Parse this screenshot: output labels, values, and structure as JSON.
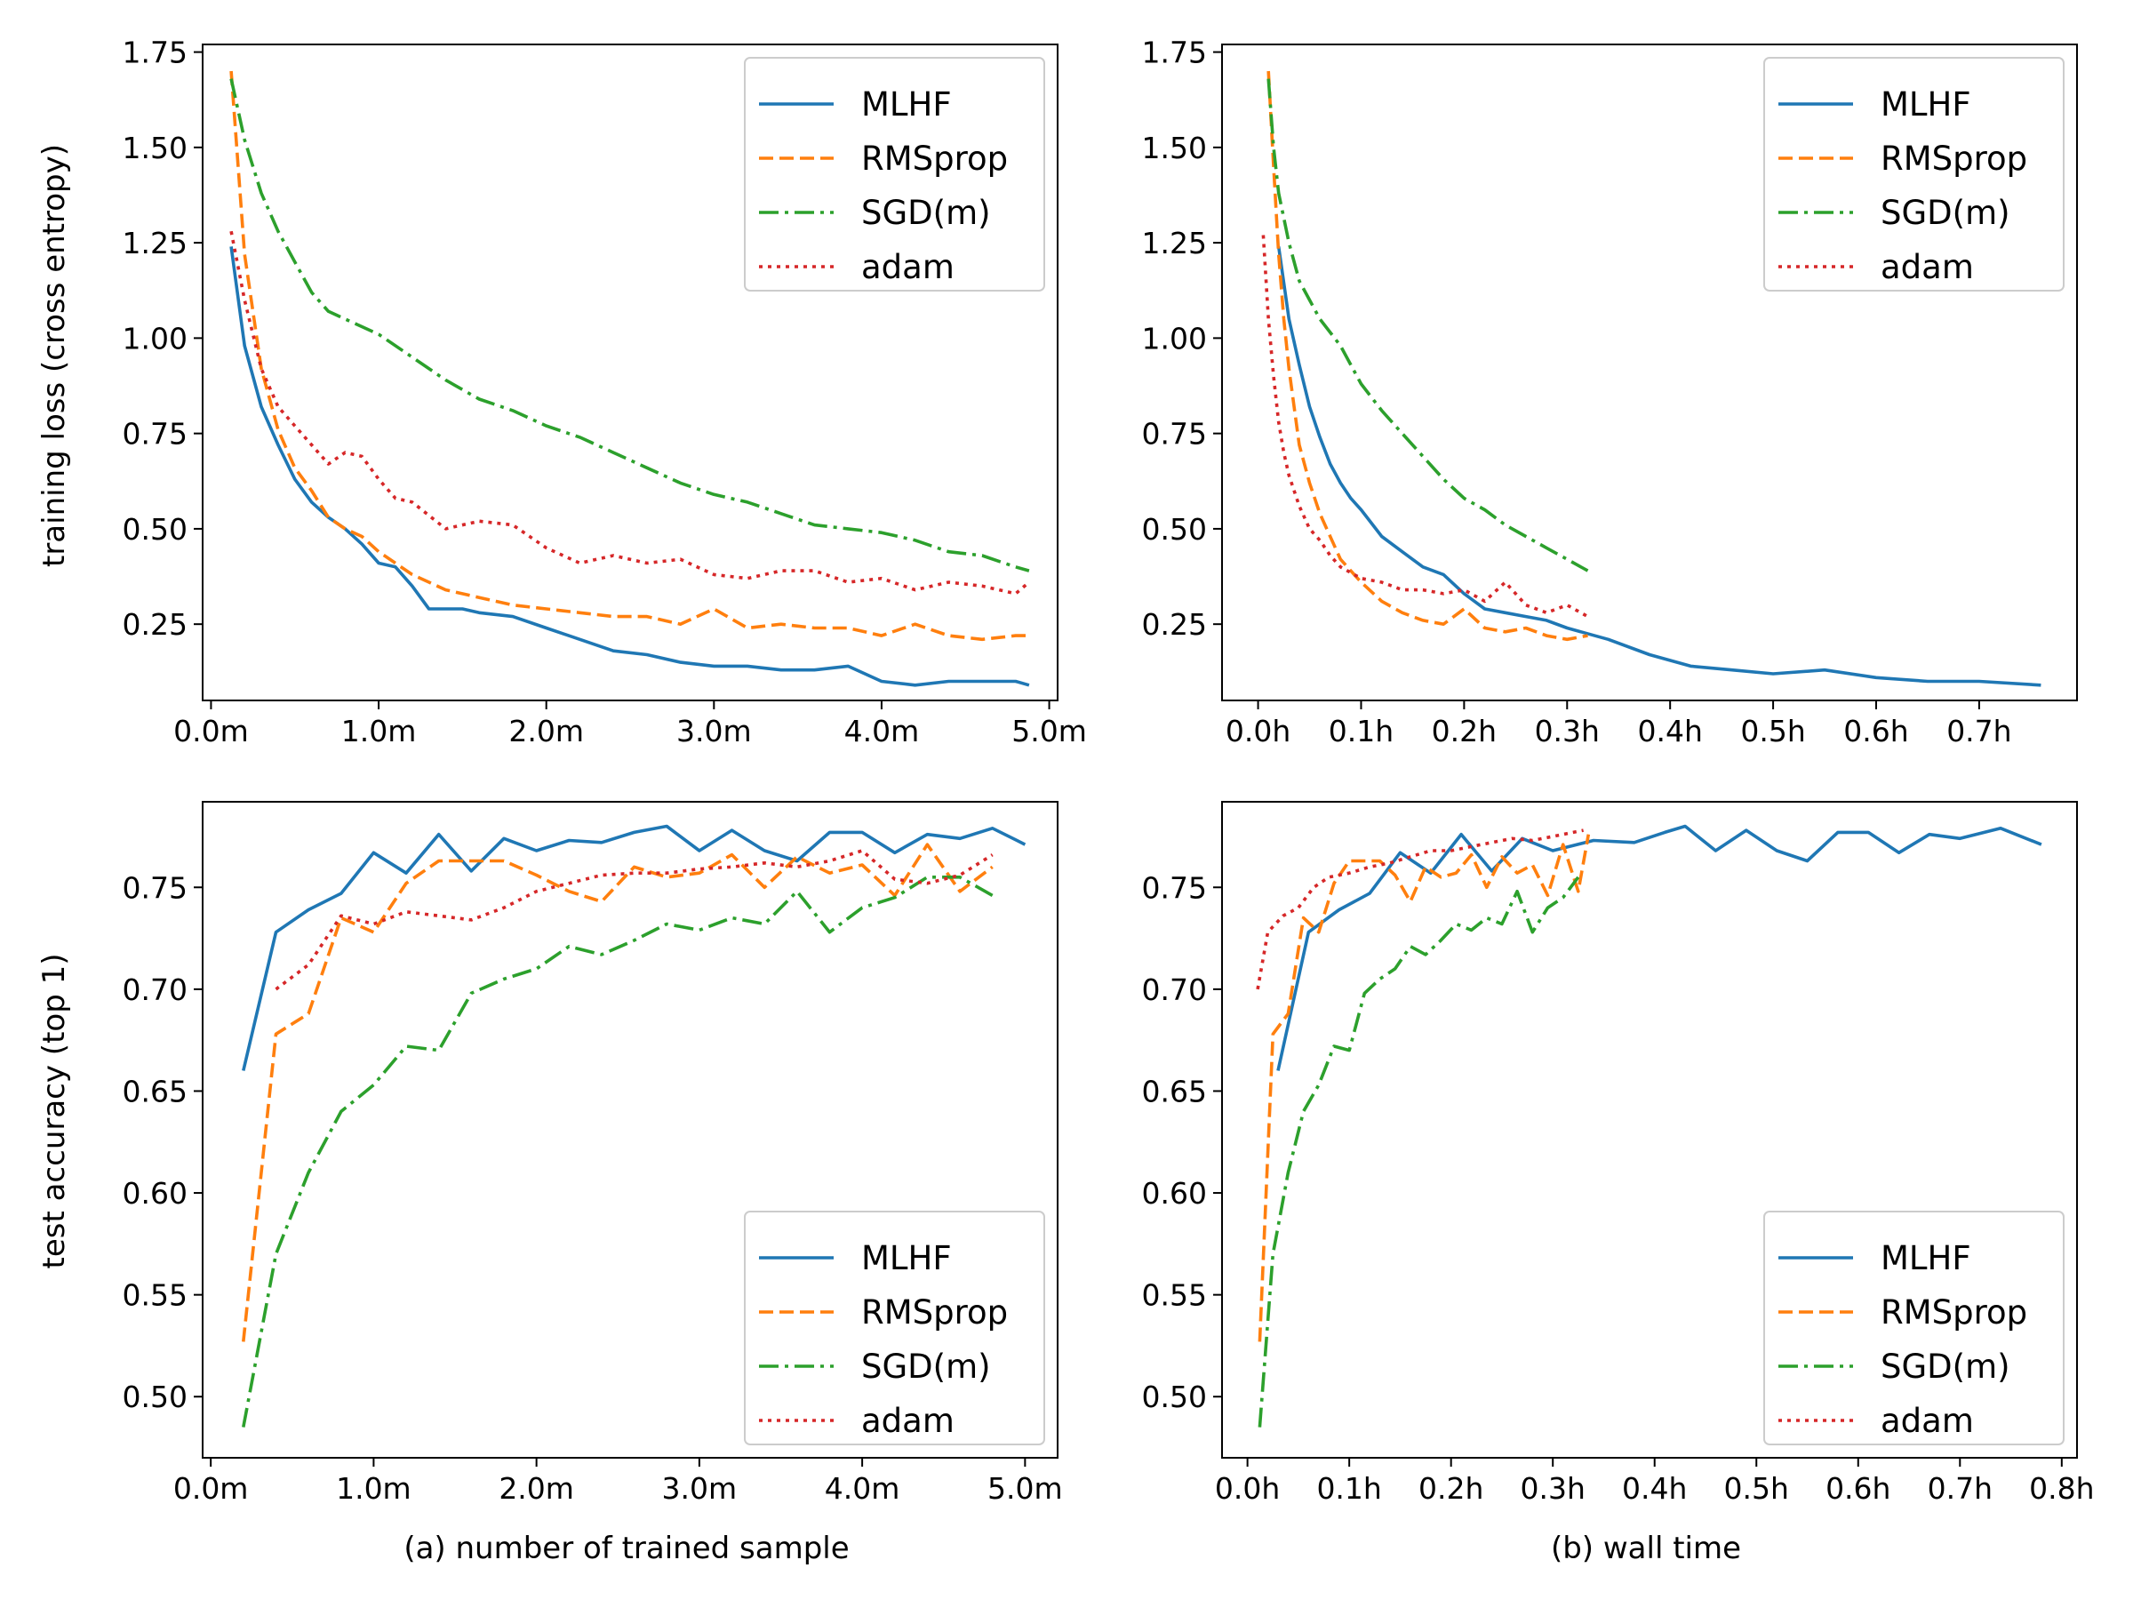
{
  "figure": {
    "captions": {
      "a": "(a) number of trained sample",
      "b": "(b) wall time"
    },
    "ylabels": {
      "loss": "training loss (cross entropy)",
      "acc": "test accuracy (top 1)"
    },
    "legend": [
      "MLHF",
      "RMSprop",
      "SGD(m)",
      "adam"
    ],
    "colors": {
      "MLHF": "#1f77b4",
      "RMSprop": "#ff7f0e",
      "SGD(m)": "#2ca02c",
      "adam": "#d62728"
    }
  },
  "chart_data": [
    {
      "id": "loss-samples",
      "type": "line",
      "title": "",
      "xlabel": "",
      "ylabel": "training loss (cross entropy)",
      "xlim": [
        -0.05,
        5.05
      ],
      "ylim": [
        0.05,
        1.77
      ],
      "xticks": [
        0,
        1,
        2,
        3,
        4,
        5
      ],
      "xtick_labels": [
        "0.0m",
        "1.0m",
        "2.0m",
        "3.0m",
        "4.0m",
        "5.0m"
      ],
      "yticks": [
        0.25,
        0.5,
        0.75,
        1.0,
        1.25,
        1.5,
        1.75
      ],
      "ytick_labels": [
        "0.25",
        "0.50",
        "0.75",
        "1.00",
        "1.25",
        "1.50",
        "1.75"
      ],
      "legend_position": "top-right",
      "series": [
        {
          "name": "MLHF",
          "x": [
            0.12,
            0.2,
            0.3,
            0.4,
            0.5,
            0.6,
            0.7,
            0.8,
            0.9,
            1.0,
            1.1,
            1.2,
            1.3,
            1.4,
            1.5,
            1.6,
            1.8,
            2.0,
            2.2,
            2.4,
            2.6,
            2.8,
            3.0,
            3.2,
            3.4,
            3.6,
            3.8,
            4.0,
            4.2,
            4.4,
            4.6,
            4.8,
            4.88
          ],
          "y": [
            1.24,
            0.98,
            0.82,
            0.72,
            0.63,
            0.57,
            0.53,
            0.5,
            0.46,
            0.41,
            0.4,
            0.35,
            0.29,
            0.29,
            0.29,
            0.28,
            0.27,
            0.24,
            0.21,
            0.18,
            0.17,
            0.15,
            0.14,
            0.14,
            0.13,
            0.13,
            0.14,
            0.1,
            0.09,
            0.1,
            0.1,
            0.1,
            0.09
          ]
        },
        {
          "name": "RMSprop",
          "x": [
            0.12,
            0.2,
            0.3,
            0.4,
            0.5,
            0.6,
            0.7,
            0.8,
            0.9,
            1.0,
            1.2,
            1.4,
            1.6,
            1.8,
            2.0,
            2.2,
            2.4,
            2.6,
            2.8,
            3.0,
            3.2,
            3.4,
            3.6,
            3.8,
            4.0,
            4.2,
            4.4,
            4.6,
            4.8,
            4.88
          ],
          "y": [
            1.7,
            1.22,
            0.92,
            0.76,
            0.66,
            0.6,
            0.53,
            0.5,
            0.48,
            0.44,
            0.38,
            0.34,
            0.32,
            0.3,
            0.29,
            0.28,
            0.27,
            0.27,
            0.25,
            0.29,
            0.24,
            0.25,
            0.24,
            0.24,
            0.22,
            0.25,
            0.22,
            0.21,
            0.22,
            0.22
          ]
        },
        {
          "name": "SGD(m)",
          "x": [
            0.12,
            0.2,
            0.3,
            0.4,
            0.5,
            0.6,
            0.7,
            0.8,
            1.0,
            1.2,
            1.4,
            1.6,
            1.8,
            2.0,
            2.2,
            2.4,
            2.6,
            2.8,
            3.0,
            3.2,
            3.4,
            3.6,
            3.8,
            4.0,
            4.2,
            4.4,
            4.6,
            4.8,
            4.88
          ],
          "y": [
            1.68,
            1.52,
            1.38,
            1.28,
            1.2,
            1.12,
            1.07,
            1.05,
            1.01,
            0.95,
            0.89,
            0.84,
            0.81,
            0.77,
            0.74,
            0.7,
            0.66,
            0.62,
            0.59,
            0.57,
            0.54,
            0.51,
            0.5,
            0.49,
            0.47,
            0.44,
            0.43,
            0.4,
            0.39
          ]
        },
        {
          "name": "adam",
          "x": [
            0.12,
            0.2,
            0.3,
            0.4,
            0.5,
            0.6,
            0.7,
            0.8,
            0.9,
            1.0,
            1.1,
            1.2,
            1.4,
            1.6,
            1.8,
            2.0,
            2.2,
            2.4,
            2.6,
            2.8,
            3.0,
            3.2,
            3.4,
            3.6,
            3.8,
            4.0,
            4.2,
            4.4,
            4.6,
            4.8,
            4.88
          ],
          "y": [
            1.28,
            1.1,
            0.92,
            0.82,
            0.77,
            0.72,
            0.67,
            0.7,
            0.69,
            0.63,
            0.58,
            0.57,
            0.5,
            0.52,
            0.51,
            0.45,
            0.41,
            0.43,
            0.41,
            0.42,
            0.38,
            0.37,
            0.39,
            0.39,
            0.36,
            0.37,
            0.34,
            0.36,
            0.35,
            0.33,
            0.36
          ]
        }
      ]
    },
    {
      "id": "loss-time",
      "type": "line",
      "title": "",
      "xlabel": "",
      "ylabel": "",
      "xlim": [
        -0.035,
        0.795
      ],
      "ylim": [
        0.05,
        1.77
      ],
      "xticks": [
        0,
        0.1,
        0.2,
        0.3,
        0.4,
        0.5,
        0.6,
        0.7
      ],
      "xtick_labels": [
        "0.0h",
        "0.1h",
        "0.2h",
        "0.3h",
        "0.4h",
        "0.5h",
        "0.6h",
        "0.7h"
      ],
      "yticks": [
        0.25,
        0.5,
        0.75,
        1.0,
        1.25,
        1.5,
        1.75
      ],
      "ytick_labels": [
        "0.25",
        "0.50",
        "0.75",
        "1.00",
        "1.25",
        "1.50",
        "1.75"
      ],
      "legend_position": "top-right",
      "series": [
        {
          "name": "MLHF",
          "x": [
            0.02,
            0.03,
            0.04,
            0.05,
            0.06,
            0.07,
            0.08,
            0.09,
            0.1,
            0.12,
            0.14,
            0.16,
            0.18,
            0.2,
            0.22,
            0.24,
            0.26,
            0.28,
            0.3,
            0.34,
            0.38,
            0.42,
            0.46,
            0.5,
            0.55,
            0.6,
            0.65,
            0.7,
            0.76
          ],
          "y": [
            1.24,
            1.05,
            0.93,
            0.82,
            0.74,
            0.67,
            0.62,
            0.58,
            0.55,
            0.48,
            0.44,
            0.4,
            0.38,
            0.33,
            0.29,
            0.28,
            0.27,
            0.26,
            0.24,
            0.21,
            0.17,
            0.14,
            0.13,
            0.12,
            0.13,
            0.11,
            0.1,
            0.1,
            0.09
          ]
        },
        {
          "name": "RMSprop",
          "x": [
            0.01,
            0.015,
            0.02,
            0.025,
            0.03,
            0.04,
            0.05,
            0.06,
            0.07,
            0.08,
            0.1,
            0.12,
            0.14,
            0.16,
            0.18,
            0.2,
            0.22,
            0.24,
            0.26,
            0.28,
            0.3,
            0.32
          ],
          "y": [
            1.7,
            1.45,
            1.22,
            1.05,
            0.92,
            0.72,
            0.62,
            0.54,
            0.48,
            0.42,
            0.36,
            0.31,
            0.28,
            0.26,
            0.25,
            0.29,
            0.24,
            0.23,
            0.24,
            0.22,
            0.21,
            0.22
          ]
        },
        {
          "name": "SGD(m)",
          "x": [
            0.01,
            0.015,
            0.02,
            0.03,
            0.04,
            0.05,
            0.06,
            0.08,
            0.1,
            0.12,
            0.14,
            0.16,
            0.18,
            0.2,
            0.22,
            0.24,
            0.26,
            0.28,
            0.3,
            0.32
          ],
          "y": [
            1.68,
            1.5,
            1.38,
            1.25,
            1.15,
            1.1,
            1.05,
            0.98,
            0.88,
            0.81,
            0.75,
            0.69,
            0.63,
            0.58,
            0.55,
            0.51,
            0.48,
            0.45,
            0.42,
            0.39
          ]
        },
        {
          "name": "adam",
          "x": [
            0.005,
            0.01,
            0.015,
            0.02,
            0.025,
            0.03,
            0.04,
            0.05,
            0.06,
            0.07,
            0.08,
            0.1,
            0.12,
            0.14,
            0.16,
            0.18,
            0.2,
            0.22,
            0.24,
            0.26,
            0.28,
            0.3,
            0.32
          ],
          "y": [
            1.27,
            1.05,
            0.9,
            0.78,
            0.7,
            0.64,
            0.56,
            0.5,
            0.47,
            0.43,
            0.4,
            0.37,
            0.36,
            0.34,
            0.34,
            0.33,
            0.34,
            0.31,
            0.36,
            0.3,
            0.28,
            0.3,
            0.27
          ]
        }
      ]
    },
    {
      "id": "acc-samples",
      "type": "line",
      "title": "",
      "xlabel": "(a) number of trained sample",
      "ylabel": "test accuracy (top 1)",
      "xlim": [
        -0.05,
        5.2
      ],
      "ylim": [
        0.47,
        0.792
      ],
      "xticks": [
        0,
        1,
        2,
        3,
        4,
        5
      ],
      "xtick_labels": [
        "0.0m",
        "1.0m",
        "2.0m",
        "3.0m",
        "4.0m",
        "5.0m"
      ],
      "yticks": [
        0.5,
        0.55,
        0.6,
        0.65,
        0.7,
        0.75
      ],
      "ytick_labels": [
        "0.50",
        "0.55",
        "0.60",
        "0.65",
        "0.70",
        "0.75"
      ],
      "legend_position": "bottom-right",
      "series": [
        {
          "name": "MLHF",
          "x": [
            0.2,
            0.4,
            0.6,
            0.8,
            1.0,
            1.2,
            1.4,
            1.6,
            1.8,
            2.0,
            2.2,
            2.4,
            2.6,
            2.8,
            3.0,
            3.2,
            3.4,
            3.6,
            3.8,
            4.0,
            4.2,
            4.4,
            4.6,
            4.8,
            5.0
          ],
          "y": [
            0.66,
            0.728,
            0.739,
            0.747,
            0.767,
            0.757,
            0.776,
            0.758,
            0.774,
            0.768,
            0.773,
            0.772,
            0.777,
            0.78,
            0.768,
            0.778,
            0.768,
            0.763,
            0.777,
            0.777,
            0.767,
            0.776,
            0.774,
            0.779,
            0.771
          ]
        },
        {
          "name": "RMSprop",
          "x": [
            0.2,
            0.4,
            0.6,
            0.8,
            1.0,
            1.2,
            1.4,
            1.6,
            1.8,
            2.0,
            2.2,
            2.4,
            2.6,
            2.8,
            3.0,
            3.2,
            3.4,
            3.6,
            3.8,
            4.0,
            4.2,
            4.4,
            4.6,
            4.8
          ],
          "y": [
            0.527,
            0.678,
            0.688,
            0.735,
            0.728,
            0.752,
            0.763,
            0.763,
            0.763,
            0.756,
            0.748,
            0.743,
            0.76,
            0.755,
            0.757,
            0.766,
            0.75,
            0.765,
            0.757,
            0.761,
            0.746,
            0.771,
            0.748,
            0.76
          ]
        },
        {
          "name": "SGD(m)",
          "x": [
            0.2,
            0.4,
            0.6,
            0.8,
            1.0,
            1.2,
            1.4,
            1.6,
            1.8,
            2.0,
            2.2,
            2.4,
            2.6,
            2.8,
            3.0,
            3.2,
            3.4,
            3.6,
            3.8,
            4.0,
            4.2,
            4.4,
            4.6,
            4.8
          ],
          "y": [
            0.485,
            0.57,
            0.61,
            0.64,
            0.653,
            0.672,
            0.67,
            0.698,
            0.705,
            0.71,
            0.721,
            0.717,
            0.724,
            0.732,
            0.729,
            0.735,
            0.732,
            0.748,
            0.728,
            0.74,
            0.745,
            0.755,
            0.755,
            0.746
          ]
        },
        {
          "name": "adam",
          "x": [
            0.4,
            0.6,
            0.8,
            1.0,
            1.2,
            1.4,
            1.6,
            1.8,
            2.0,
            2.2,
            2.4,
            2.6,
            2.8,
            3.0,
            3.2,
            3.4,
            3.6,
            3.8,
            4.0,
            4.2,
            4.4,
            4.6,
            4.8
          ],
          "y": [
            0.7,
            0.712,
            0.736,
            0.732,
            0.738,
            0.736,
            0.734,
            0.74,
            0.748,
            0.752,
            0.756,
            0.757,
            0.757,
            0.759,
            0.76,
            0.762,
            0.76,
            0.763,
            0.768,
            0.754,
            0.752,
            0.756,
            0.766
          ]
        }
      ]
    },
    {
      "id": "acc-time",
      "type": "line",
      "title": "",
      "xlabel": "(b) wall time",
      "ylabel": "",
      "xlim": [
        -0.025,
        0.815
      ],
      "ylim": [
        0.47,
        0.792
      ],
      "xticks": [
        0,
        0.1,
        0.2,
        0.3,
        0.4,
        0.5,
        0.6,
        0.7,
        0.8
      ],
      "xtick_labels": [
        "0.0h",
        "0.1h",
        "0.2h",
        "0.3h",
        "0.4h",
        "0.5h",
        "0.6h",
        "0.7h",
        "0.8h"
      ],
      "yticks": [
        0.5,
        0.55,
        0.6,
        0.65,
        0.7,
        0.75
      ],
      "ytick_labels": [
        "0.50",
        "0.55",
        "0.60",
        "0.65",
        "0.70",
        "0.75"
      ],
      "legend_position": "bottom-right",
      "series": [
        {
          "name": "MLHF",
          "x": [
            0.03,
            0.06,
            0.09,
            0.12,
            0.15,
            0.18,
            0.21,
            0.24,
            0.27,
            0.3,
            0.34,
            0.38,
            0.41,
            0.43,
            0.46,
            0.49,
            0.52,
            0.55,
            0.58,
            0.61,
            0.64,
            0.67,
            0.7,
            0.74,
            0.78
          ],
          "y": [
            0.66,
            0.728,
            0.739,
            0.747,
            0.767,
            0.757,
            0.776,
            0.758,
            0.774,
            0.768,
            0.773,
            0.772,
            0.777,
            0.78,
            0.768,
            0.778,
            0.768,
            0.763,
            0.777,
            0.777,
            0.767,
            0.776,
            0.774,
            0.779,
            0.771
          ]
        },
        {
          "name": "RMSprop",
          "x": [
            0.012,
            0.025,
            0.04,
            0.055,
            0.07,
            0.085,
            0.1,
            0.115,
            0.13,
            0.145,
            0.16,
            0.175,
            0.19,
            0.205,
            0.22,
            0.235,
            0.25,
            0.265,
            0.28,
            0.295,
            0.31,
            0.325,
            0.335
          ],
          "y": [
            0.527,
            0.678,
            0.688,
            0.735,
            0.728,
            0.752,
            0.763,
            0.763,
            0.763,
            0.756,
            0.743,
            0.76,
            0.755,
            0.757,
            0.766,
            0.75,
            0.765,
            0.757,
            0.761,
            0.746,
            0.771,
            0.748,
            0.776
          ]
        },
        {
          "name": "SGD(m)",
          "x": [
            0.012,
            0.025,
            0.04,
            0.055,
            0.07,
            0.085,
            0.1,
            0.115,
            0.13,
            0.145,
            0.16,
            0.175,
            0.19,
            0.205,
            0.22,
            0.235,
            0.25,
            0.265,
            0.28,
            0.295,
            0.31,
            0.325
          ],
          "y": [
            0.485,
            0.57,
            0.61,
            0.64,
            0.653,
            0.672,
            0.67,
            0.698,
            0.705,
            0.71,
            0.721,
            0.717,
            0.724,
            0.732,
            0.729,
            0.735,
            0.732,
            0.748,
            0.728,
            0.74,
            0.745,
            0.755
          ]
        },
        {
          "name": "adam",
          "x": [
            0.01,
            0.02,
            0.035,
            0.05,
            0.065,
            0.08,
            0.1,
            0.12,
            0.14,
            0.16,
            0.18,
            0.2,
            0.22,
            0.24,
            0.26,
            0.28,
            0.3,
            0.32,
            0.33
          ],
          "y": [
            0.7,
            0.728,
            0.736,
            0.74,
            0.75,
            0.755,
            0.757,
            0.76,
            0.762,
            0.765,
            0.768,
            0.768,
            0.77,
            0.772,
            0.774,
            0.773,
            0.775,
            0.777,
            0.778
          ]
        }
      ]
    }
  ]
}
